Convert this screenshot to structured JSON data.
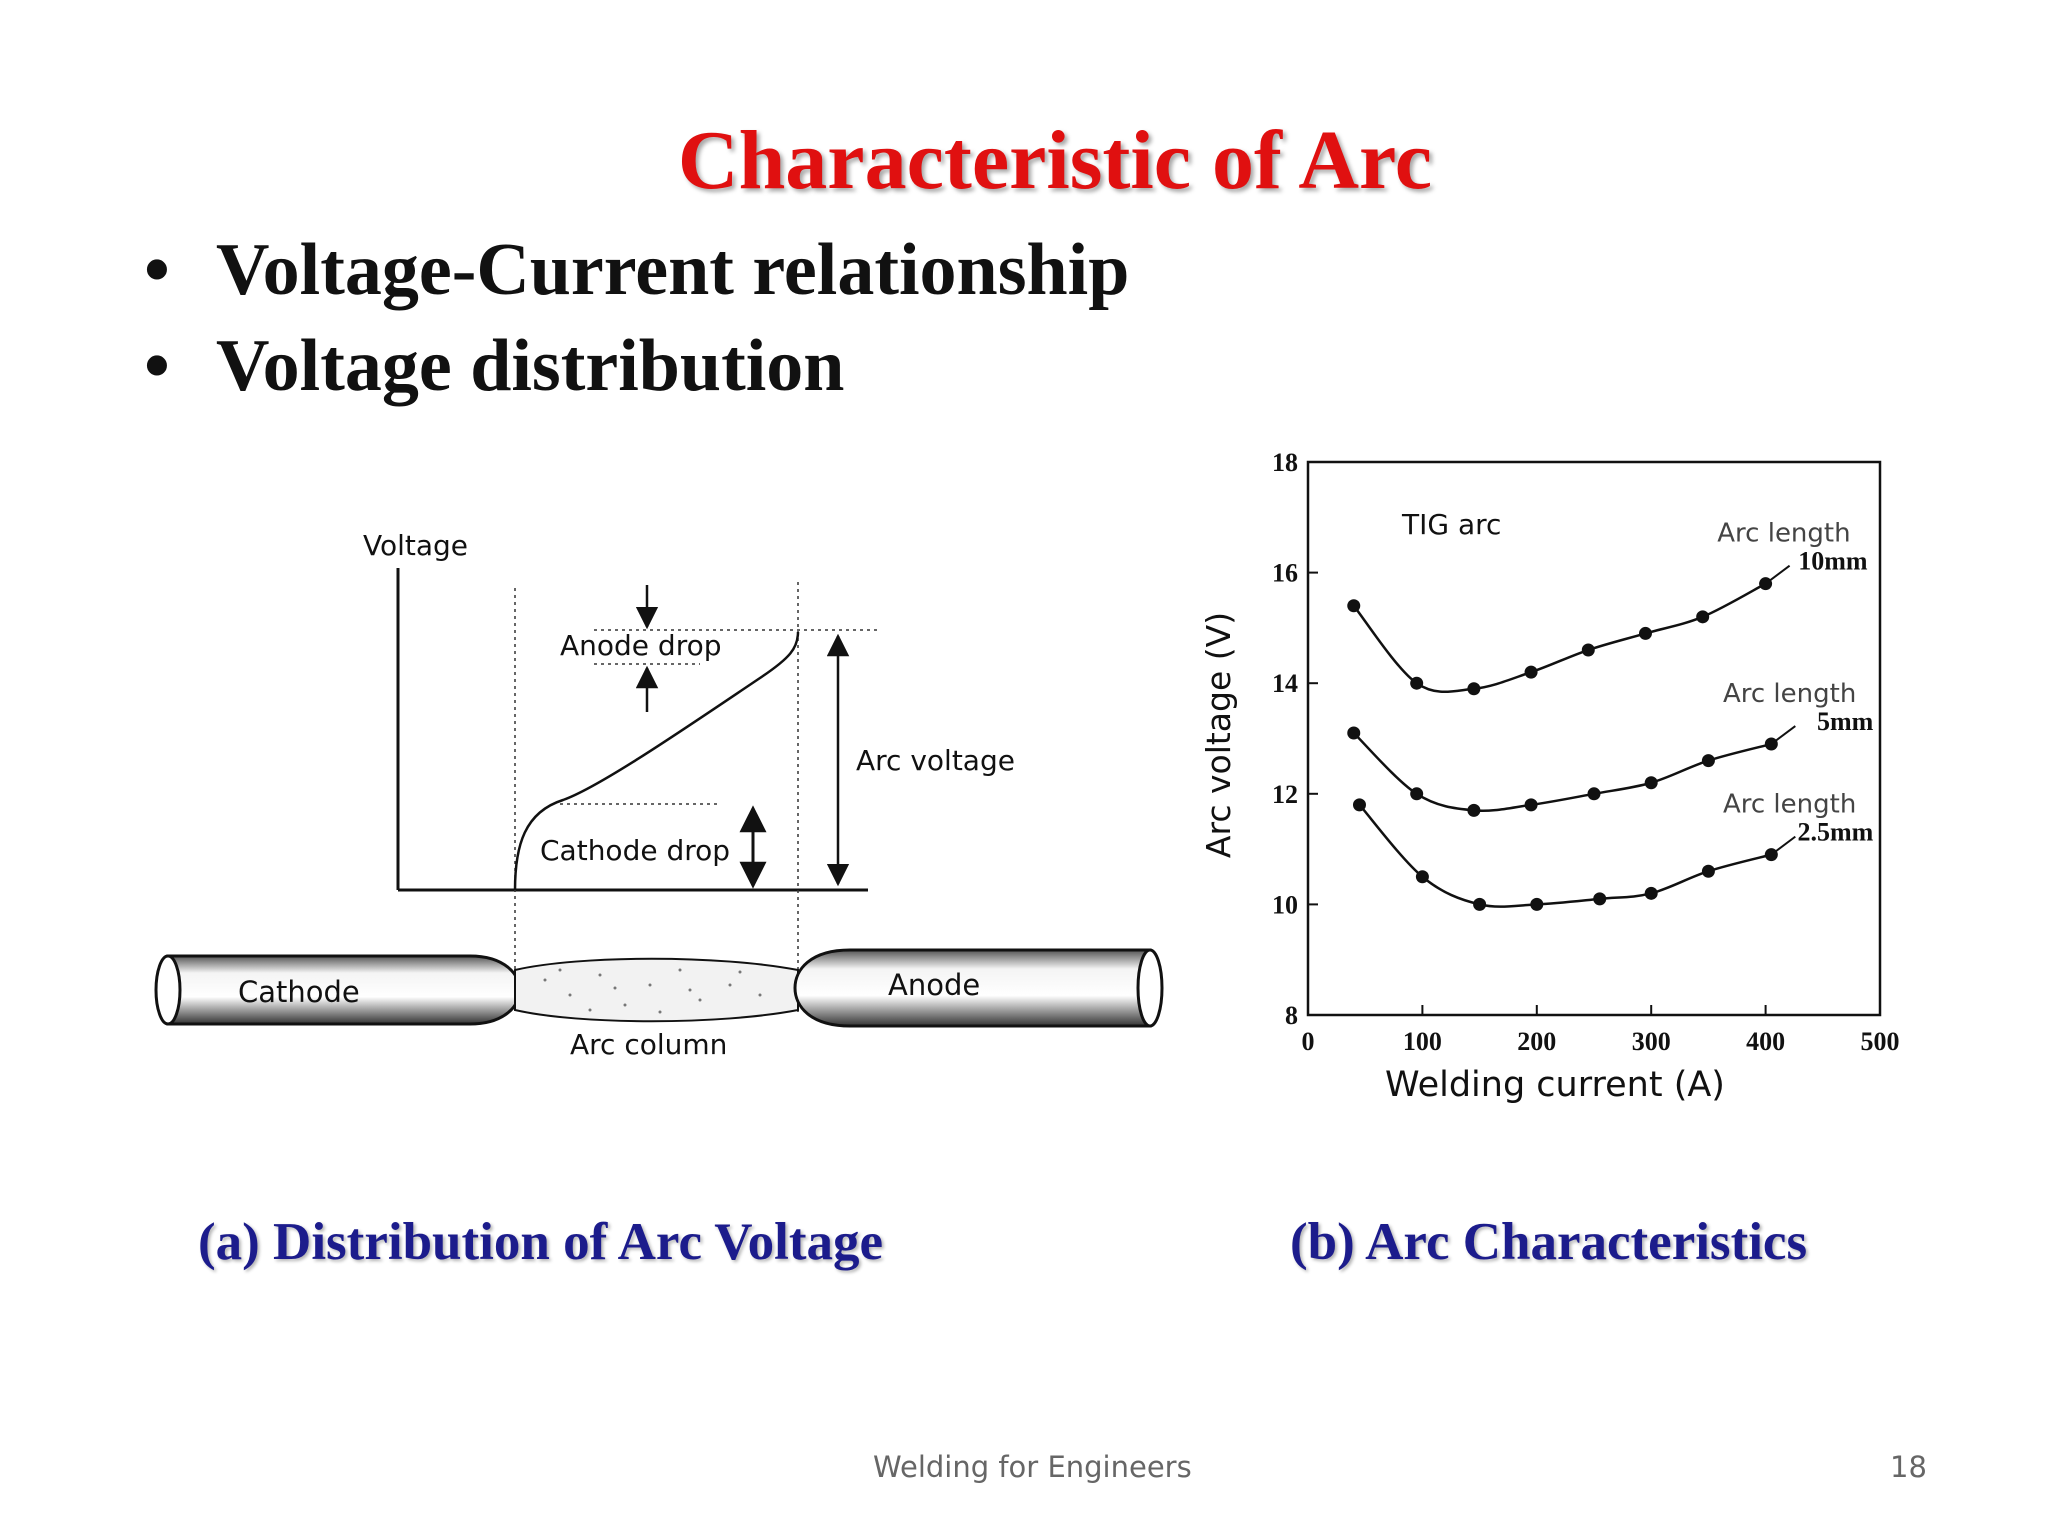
{
  "slide": {
    "title": "Characteristic of Arc",
    "bullets": [
      "Voltage-Current relationship",
      "Voltage distribution"
    ],
    "bullet_symbol": "•"
  },
  "diagram_a": {
    "y_axis_label": "Voltage",
    "anode_drop": "Anode drop",
    "cathode_drop": "Cathode drop",
    "arc_voltage": "Arc voltage",
    "cathode": "Cathode",
    "anode": "Anode",
    "arc_column": "Arc column",
    "caption": "(a) Distribution of Arc Voltage"
  },
  "chart_data": {
    "type": "line",
    "annotation": "TIG arc",
    "xlabel": "Welding current (A)",
    "ylabel": "Arc voltage (V)",
    "xlim": [
      0,
      500
    ],
    "ylim": [
      8,
      18
    ],
    "xticks": [
      0,
      100,
      200,
      300,
      400,
      500
    ],
    "yticks": [
      8,
      10,
      12,
      14,
      16,
      18
    ],
    "series": [
      {
        "label_line1": "Arc length",
        "label_line2": "10mm",
        "x": [
          40,
          95,
          145,
          195,
          245,
          295,
          345,
          400
        ],
        "y": [
          15.4,
          14.0,
          13.9,
          14.2,
          14.6,
          14.9,
          15.2,
          15.8
        ]
      },
      {
        "label_line1": "Arc length",
        "label_line2": "5mm",
        "x": [
          40,
          95,
          145,
          195,
          250,
          300,
          350,
          405
        ],
        "y": [
          13.1,
          12.0,
          11.7,
          11.8,
          12.0,
          12.2,
          12.6,
          12.9
        ]
      },
      {
        "label_line1": "Arc length",
        "label_line2": "2.5mm",
        "x": [
          45,
          100,
          150,
          200,
          255,
          300,
          350,
          405
        ],
        "y": [
          11.8,
          10.5,
          10.0,
          10.0,
          10.1,
          10.2,
          10.6,
          10.9
        ]
      }
    ],
    "caption": "(b) Arc Characteristics"
  },
  "footer": {
    "center": "Welding for Engineers",
    "page_number": "18"
  }
}
